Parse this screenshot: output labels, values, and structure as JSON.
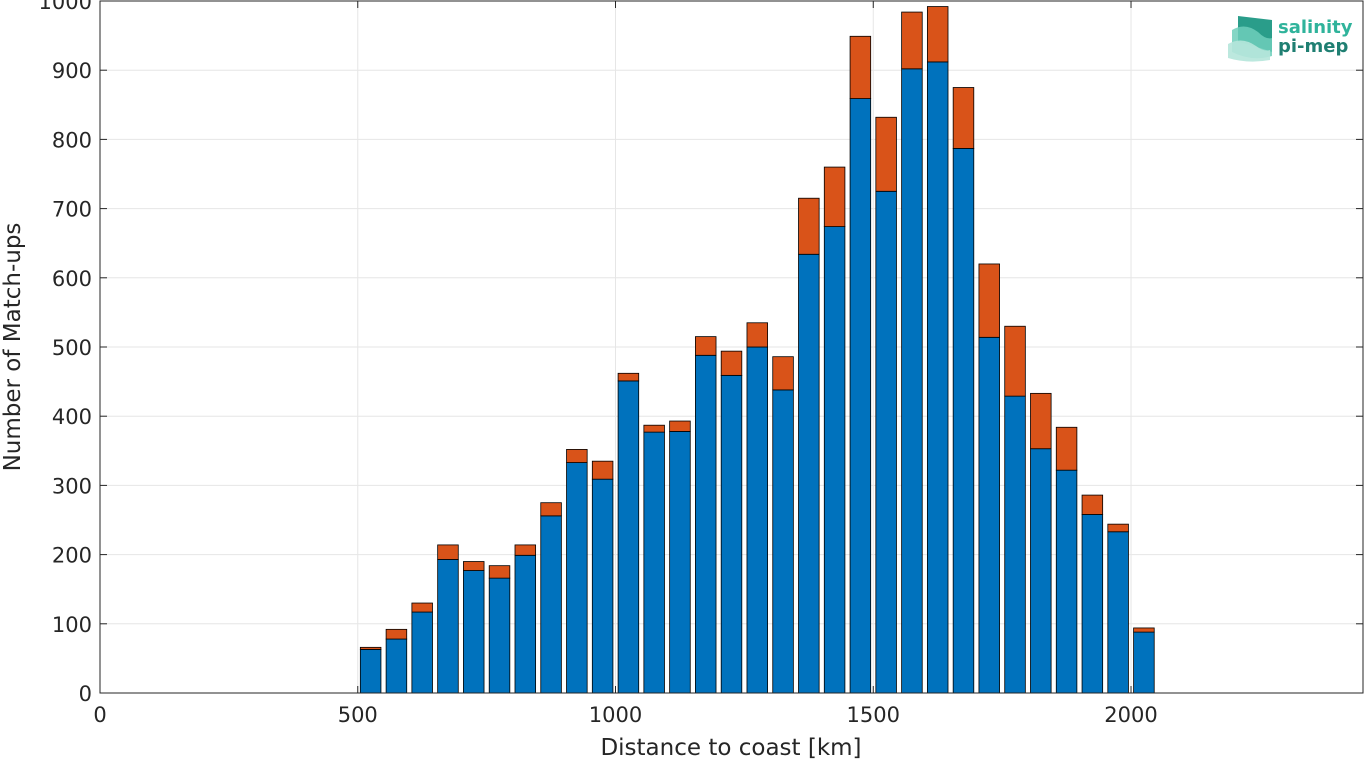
{
  "logo": {
    "line1": "salinity",
    "line2": "pi-mep",
    "color_line1": "#2fb39b",
    "color_line2": "#1f7f72"
  },
  "chart_data": {
    "type": "bar",
    "stacked": true,
    "title": "",
    "xlabel": "Distance to coast [km]",
    "ylabel": "Number of Match-ups",
    "xlim": [
      0,
      2450
    ],
    "ylim": [
      0,
      1000
    ],
    "xticks": [
      0,
      500,
      1000,
      1500,
      2000
    ],
    "yticks": [
      0,
      100,
      200,
      300,
      400,
      500,
      600,
      700,
      800,
      900,
      1000
    ],
    "grid": true,
    "bin_width": 50,
    "x": [
      525,
      575,
      625,
      675,
      725,
      775,
      825,
      875,
      925,
      975,
      1025,
      1075,
      1125,
      1175,
      1225,
      1275,
      1325,
      1375,
      1425,
      1475,
      1525,
      1575,
      1625,
      1675,
      1725,
      1775,
      1825,
      1875,
      1925,
      1975,
      2025
    ],
    "series": [
      {
        "color": "#0072bd",
        "values": [
          63,
          78,
          117,
          193,
          177,
          166,
          199,
          256,
          333,
          309,
          451,
          377,
          378,
          488,
          459,
          500,
          438,
          634,
          674,
          859,
          725,
          902,
          912,
          787,
          514,
          429,
          353,
          322,
          258,
          233,
          88
        ]
      },
      {
        "color": "#d95319",
        "values": [
          3,
          14,
          13,
          21,
          13,
          18,
          15,
          19,
          19,
          26,
          11,
          10,
          15,
          27,
          35,
          35,
          48,
          81,
          86,
          90,
          107,
          82,
          80,
          88,
          106,
          101,
          80,
          62,
          28,
          11,
          6
        ]
      }
    ]
  }
}
